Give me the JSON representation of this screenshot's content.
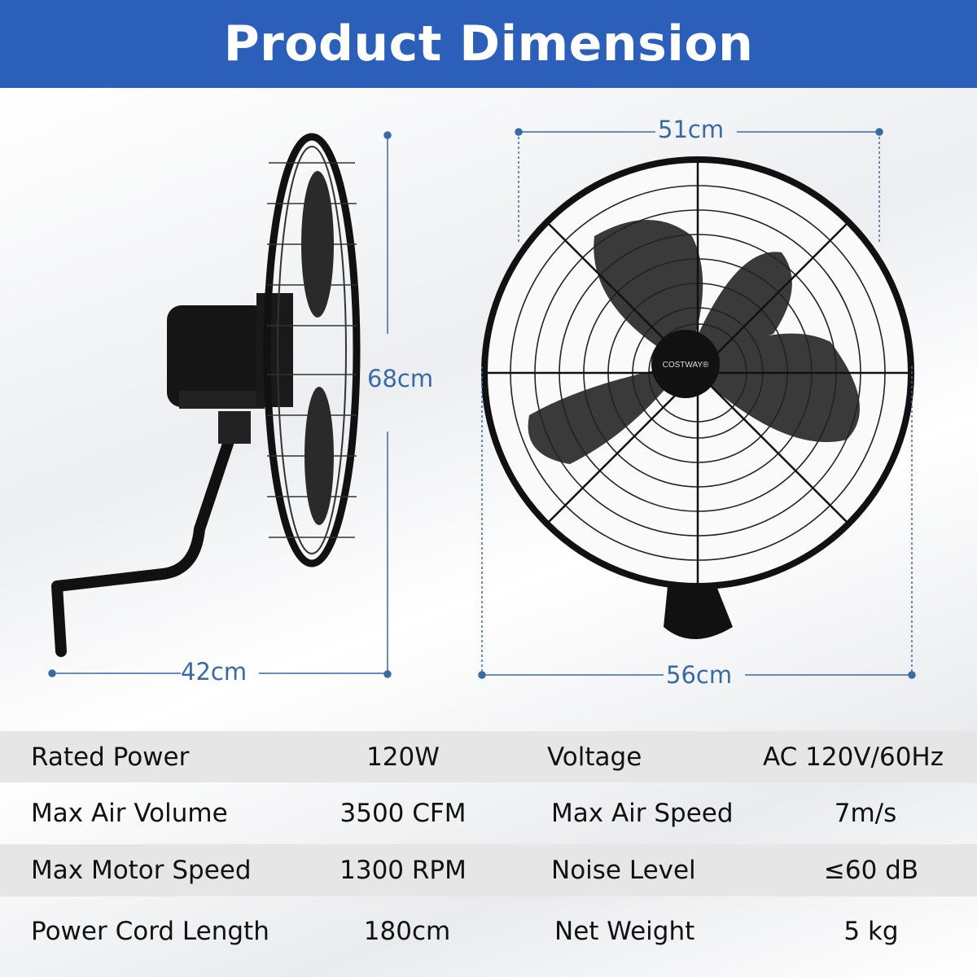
{
  "header": {
    "title": "Product Dimension"
  },
  "dimensions": {
    "height": "68cm",
    "depth": "42cm",
    "width_top": "51cm",
    "width_bottom": "56cm"
  },
  "brand_logo": "COSTWAY",
  "colors": {
    "banner": "#2b5fb9",
    "dimension_line": "#3a6aa6",
    "row_shade": "#e6e6e6"
  },
  "specs": [
    {
      "label": "Rated Power",
      "value": "120W",
      "label2": "Voltage",
      "value2": "AC 120V/60Hz"
    },
    {
      "label": "Max Air Volume",
      "value": "3500 CFM",
      "label2": "Max Air Speed",
      "value2": "7m/s"
    },
    {
      "label": "Max Motor Speed",
      "value": "1300 RPM",
      "label2": "Noise Level",
      "value2": "≤60 dB"
    },
    {
      "label": "Power Cord Length",
      "value": "180cm",
      "label2": "Net Weight",
      "value2": "5 kg"
    }
  ]
}
